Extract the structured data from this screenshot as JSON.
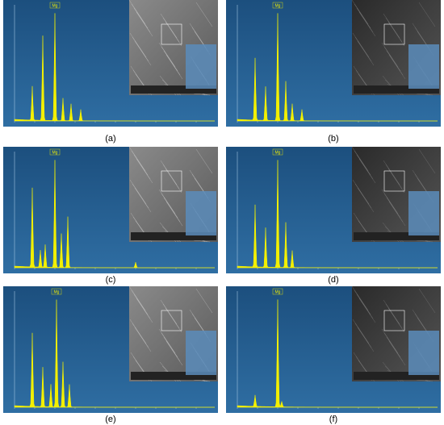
{
  "panels": [
    {
      "caption": "(a)",
      "peak_label": "Mg"
    },
    {
      "caption": "(b)",
      "peak_label": "Mg"
    },
    {
      "caption": "(c)",
      "peak_label": "Mg"
    },
    {
      "caption": "(d)",
      "peak_label": "Mg"
    },
    {
      "caption": "(e)",
      "peak_label": "Mg"
    },
    {
      "caption": "(f)",
      "peak_label": "Mg"
    }
  ]
}
